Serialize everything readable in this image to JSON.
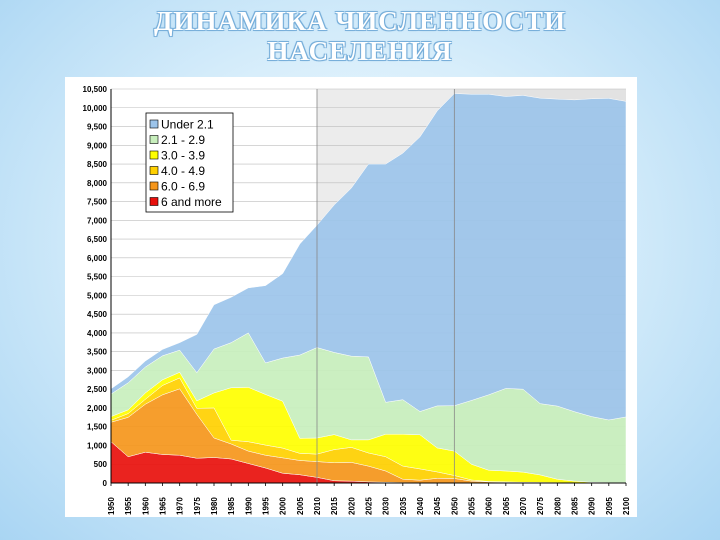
{
  "title": {
    "line1": "ДИНАМИКА ЧИСЛЕННОСТИ",
    "line2": "НАСЕЛЕНИЯ"
  },
  "chart_data": {
    "type": "area",
    "stacked": true,
    "title": "",
    "xlabel": "",
    "ylabel": "",
    "ylim": [
      0,
      10500
    ],
    "xlim": [
      1950,
      2100
    ],
    "yticks": [
      0,
      500,
      1000,
      1500,
      2000,
      2500,
      3000,
      3500,
      4000,
      4500,
      5000,
      5500,
      6000,
      6500,
      7000,
      7500,
      8000,
      8500,
      9000,
      9500,
      10000,
      10500
    ],
    "ytick_labels": [
      "0",
      "500",
      "1,000",
      "1,500",
      "2,000",
      "2,500",
      "3,000",
      "3,500",
      "4,000",
      "4,500",
      "5,000",
      "5,500",
      "6,000",
      "6,500",
      "7,000",
      "7,500",
      "8,000",
      "8,500",
      "9,000",
      "9,500",
      "10,000",
      "10,500"
    ],
    "xticks": [
      1950,
      1955,
      1960,
      1965,
      1970,
      1975,
      1980,
      1985,
      1990,
      1995,
      2000,
      2005,
      2010,
      2015,
      2020,
      2025,
      2030,
      2035,
      2040,
      2045,
      2050,
      2055,
      2060,
      2065,
      2070,
      2075,
      2080,
      2085,
      2090,
      2095,
      2100
    ],
    "shaded_regions": [
      [
        2010,
        2050
      ],
      [
        2050,
        2100
      ]
    ],
    "grid": "horizontal",
    "legend_position": "top-left",
    "x": [
      1950,
      1955,
      1960,
      1965,
      1970,
      1975,
      1980,
      1985,
      1990,
      1995,
      2000,
      2005,
      2010,
      2015,
      2020,
      2025,
      2030,
      2035,
      2040,
      2045,
      2050,
      2055,
      2060,
      2065,
      2070,
      2075,
      2080,
      2085,
      2090,
      2095,
      2100
    ],
    "series": [
      {
        "name": "6 and more",
        "color": "#e8100c",
        "values": [
          1100,
          700,
          820,
          760,
          740,
          660,
          680,
          640,
          520,
          400,
          260,
          220,
          150,
          60,
          50,
          30,
          20,
          10,
          5,
          5,
          0,
          0,
          0,
          0,
          0,
          0,
          0,
          0,
          0,
          0,
          0
        ]
      },
      {
        "name": "6.0 - 6.9",
        "color": "#f5961b",
        "values": [
          520,
          1050,
          1280,
          1590,
          1770,
          1170,
          520,
          400,
          330,
          340,
          410,
          380,
          420,
          480,
          500,
          420,
          300,
          90,
          70,
          120,
          120,
          50,
          30,
          20,
          10,
          10,
          5,
          0,
          0,
          0,
          0
        ]
      },
      {
        "name": "4.0 - 4.9",
        "color": "#ffd000",
        "values": [
          50,
          100,
          130,
          250,
          290,
          160,
          800,
          100,
          250,
          270,
          260,
          190,
          200,
          350,
          400,
          350,
          380,
          350,
          300,
          170,
          80,
          30,
          10,
          10,
          10,
          5,
          5,
          0,
          0,
          0,
          0
        ]
      },
      {
        "name": "3.0 - 3.9",
        "color": "#ffff00",
        "values": [
          100,
          100,
          170,
          150,
          150,
          200,
          400,
          1400,
          1450,
          1350,
          1250,
          400,
          430,
          400,
          200,
          350,
          600,
          850,
          910,
          640,
          650,
          420,
          300,
          290,
          270,
          200,
          90,
          50,
          20,
          10,
          10
        ]
      },
      {
        "name": "2.1 - 2.9",
        "color": "#c8efbd",
        "values": [
          600,
          720,
          690,
          640,
          590,
          750,
          1170,
          1200,
          1450,
          840,
          1150,
          2220,
          2410,
          2190,
          2230,
          2210,
          850,
          920,
          620,
          1120,
          1210,
          1700,
          2010,
          2200,
          2210,
          1900,
          1950,
          1850,
          1750,
          1670,
          1750
        ]
      },
      {
        "name": "Under 2.1",
        "color": "#9cc4ea",
        "values": [
          140,
          160,
          160,
          170,
          200,
          1020,
          1180,
          1210,
          1200,
          2060,
          2250,
          2960,
          3260,
          3930,
          4480,
          5140,
          6350,
          6570,
          7320,
          7860,
          8320,
          8160,
          8010,
          7780,
          7830,
          8140,
          8180,
          8310,
          8470,
          8570,
          8410
        ]
      }
    ],
    "top_envelope_note": "",
    "legend_order": [
      "Under 2.1",
      "2.1 - 2.9",
      "3.0 - 3.9",
      "4.0 - 4.9",
      "6.0 - 6.9",
      "6 and more"
    ]
  }
}
